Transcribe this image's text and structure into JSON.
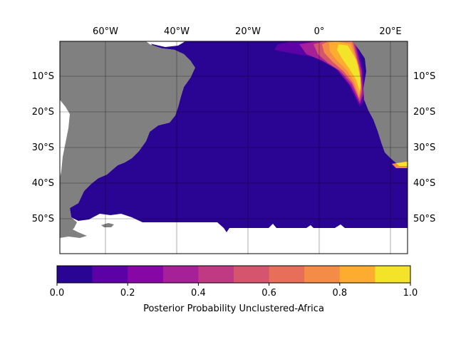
{
  "map": {
    "lon_labels": [
      "60°W",
      "40°W",
      "20°W",
      "0°",
      "20°E"
    ],
    "lat_labels": [
      "10°S",
      "20°S",
      "30°S",
      "40°S",
      "50°S"
    ],
    "land_color": "#808080",
    "ocean_fill_color": "#2a0593"
  },
  "colorbar": {
    "label": "Posterior Probability Unclustered-Africa",
    "ticks": [
      "0.0",
      "0.2",
      "0.4",
      "0.6",
      "0.8",
      "1.0"
    ],
    "colors": [
      "#2a0593",
      "#5c01a6",
      "#8606a6",
      "#a62098",
      "#c03a83",
      "#d5546e",
      "#e76f5a",
      "#f48c48",
      "#fcad2f",
      "#f3e42a"
    ]
  }
}
